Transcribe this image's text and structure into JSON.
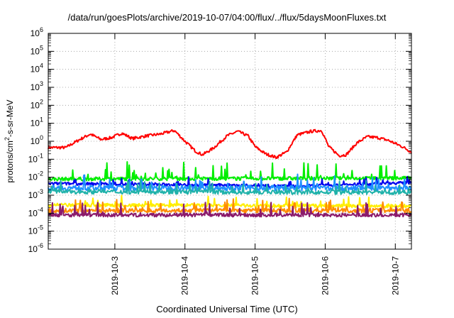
{
  "chart_data": {
    "type": "line",
    "title": "/data/run/goesPlots/archive/2019-10-07/04:00/flux/../flux/5daysMoonFluxes.txt",
    "xlabel": "Coordinated Universal Time (UTC)",
    "ylabel_base": "protons/cm",
    "ylabel_sup": "2",
    "ylabel_rest": "-s-sr-MeV",
    "y_scale": "log",
    "ylim_exponents": [
      -6,
      6
    ],
    "grid": true,
    "xlim_days": [
      2.05,
      7.23
    ],
    "x_ticks": [
      {
        "label": "2019-10-3",
        "day": 3
      },
      {
        "label": "2019-10-4",
        "day": 4
      },
      {
        "label": "2019-10-5",
        "day": 5
      },
      {
        "label": "2019-10-6",
        "day": 6
      },
      {
        "label": "2019-10-7",
        "day": 7
      }
    ],
    "series": [
      {
        "color": "#ff0000",
        "amp": 0.45,
        "noise": 0.08,
        "spikes": 0,
        "base_log": [
          [
            2.05,
            -0.35
          ],
          [
            2.3,
            -0.35
          ],
          [
            2.5,
            0.1
          ],
          [
            2.65,
            0.4
          ],
          [
            2.8,
            0.1
          ],
          [
            2.95,
            0.2
          ],
          [
            3.1,
            0.45
          ],
          [
            3.25,
            0.15
          ],
          [
            3.45,
            0.3
          ],
          [
            3.65,
            0.4
          ],
          [
            3.85,
            0.6
          ],
          [
            4.0,
            0.0
          ],
          [
            4.15,
            -0.55
          ],
          [
            4.25,
            -0.75
          ],
          [
            4.4,
            -0.4
          ],
          [
            4.6,
            0.3
          ],
          [
            4.75,
            0.55
          ],
          [
            4.9,
            0.3
          ],
          [
            5.0,
            -0.3
          ],
          [
            5.15,
            -0.7
          ],
          [
            5.3,
            -0.9
          ],
          [
            5.45,
            -0.6
          ],
          [
            5.6,
            0.35
          ],
          [
            5.8,
            0.55
          ],
          [
            5.95,
            0.6
          ],
          [
            6.05,
            -0.3
          ],
          [
            6.2,
            -0.8
          ],
          [
            6.3,
            -0.75
          ],
          [
            6.45,
            -0.1
          ],
          [
            6.6,
            0.25
          ],
          [
            6.75,
            0.2
          ],
          [
            6.9,
            0.05
          ],
          [
            7.1,
            -0.3
          ],
          [
            7.23,
            -0.6
          ]
        ]
      },
      {
        "color": "#00ee00",
        "amp": 0.0,
        "noise": 0.1,
        "spikes": 0.9,
        "base_log": [
          [
            2.05,
            -2.1
          ],
          [
            7.23,
            -2.05
          ]
        ]
      },
      {
        "color": "#0000ee",
        "amp": 0.0,
        "noise": 0.08,
        "spikes": 0.4,
        "base_log": [
          [
            2.05,
            -2.35
          ],
          [
            3.5,
            -2.4
          ],
          [
            4.7,
            -2.45
          ],
          [
            5.6,
            -2.5
          ],
          [
            7.23,
            -2.3
          ]
        ]
      },
      {
        "color": "#1e90ff",
        "amp": 0.0,
        "noise": 0.15,
        "spikes": 0.7,
        "base_log": [
          [
            2.05,
            -2.6
          ],
          [
            7.23,
            -2.6
          ]
        ]
      },
      {
        "color": "#20b2aa",
        "amp": 0.0,
        "noise": 0.12,
        "spikes": 0.6,
        "base_log": [
          [
            2.05,
            -2.8
          ],
          [
            7.23,
            -2.85
          ]
        ]
      },
      {
        "color": "#ffee00",
        "amp": 0.0,
        "noise": 0.1,
        "spikes": 0.5,
        "base_log": [
          [
            2.05,
            -3.55
          ],
          [
            7.23,
            -3.6
          ]
        ]
      },
      {
        "color": "#ff8c00",
        "amp": 0.0,
        "noise": 0.12,
        "spikes": 0.6,
        "base_log": [
          [
            2.05,
            -3.85
          ],
          [
            7.23,
            -3.85
          ]
        ]
      },
      {
        "color": "#8b1a6b",
        "amp": 0.0,
        "noise": 0.1,
        "spikes": 0.7,
        "base_log": [
          [
            2.05,
            -4.1
          ],
          [
            7.23,
            -4.1
          ]
        ]
      }
    ]
  }
}
